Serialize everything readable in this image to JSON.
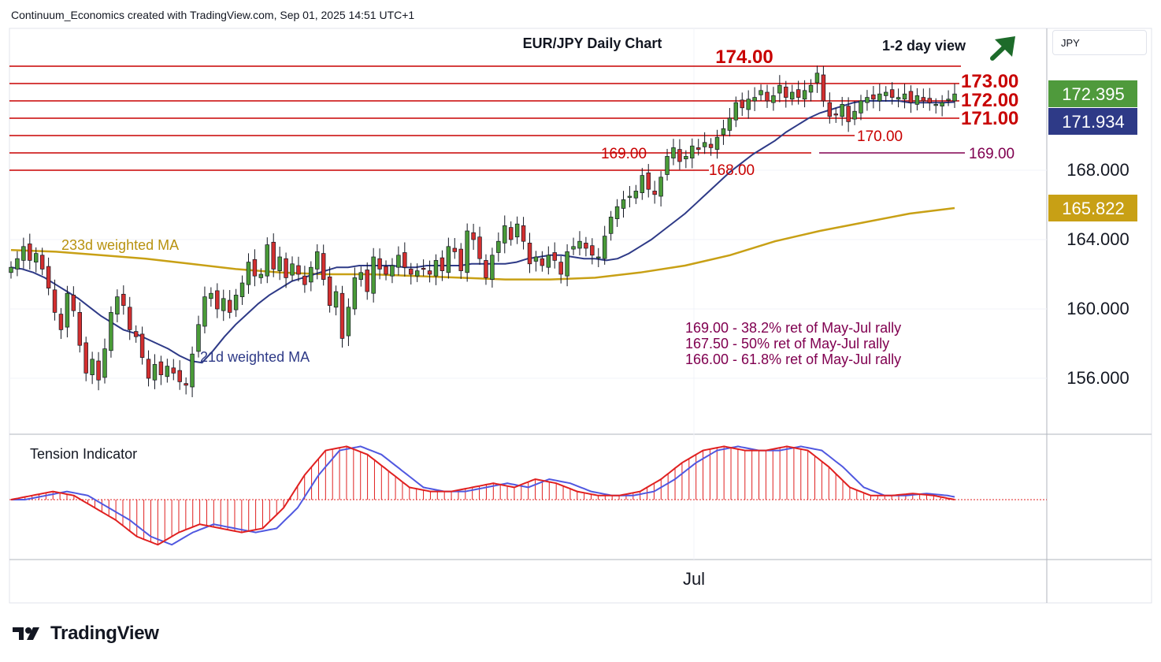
{
  "header": {
    "text": "Continuum_Economics created with TradingView.com, Sep 01, 2025 14:51 UTC+1"
  },
  "branding": {
    "logo_text": "TradingView"
  },
  "axis": {
    "currency": "JPY",
    "x_label": "Jul"
  },
  "colors": {
    "up": "#4a9b38",
    "down": "#d32f2f",
    "level": "#c80000",
    "ma21": "#2e3a87",
    "ma233": "#c8a015",
    "ret": "#800050",
    "tension_red": "#e02020",
    "tension_blue": "#5058e0",
    "price_badge": "#4f9a3c",
    "ma21_badge": "#2e3a87",
    "ma233_badge": "#c8a015",
    "arrow": "#1d6b2a"
  },
  "chart_data": {
    "type": "candlestick",
    "title": "EUR/JPY Daily Chart",
    "view": "1-2 day view",
    "view_direction": "up",
    "y_axis_ticks": [
      "168.000",
      "164.000",
      "160.000",
      "156.000"
    ],
    "price_badges": [
      {
        "label": "172.395",
        "value": 172.395,
        "kind": "last-price"
      },
      {
        "label": "171.934",
        "value": 171.934,
        "kind": "ma21"
      },
      {
        "label": "165.822",
        "value": 165.822,
        "kind": "ma233"
      }
    ],
    "levels": [
      {
        "label": "174.00",
        "value": 174.0
      },
      {
        "label": "173.00",
        "value": 173.0
      },
      {
        "label": "172.00",
        "value": 172.0
      },
      {
        "label": "171.00",
        "value": 171.0
      },
      {
        "label": "170.00",
        "value": 170.0
      },
      {
        "label": "169.00",
        "value": 169.0
      },
      {
        "label": "168.00",
        "value": 168.0
      }
    ],
    "retracement_line": {
      "label": "169.00",
      "value": 169.0
    },
    "series_labels": {
      "ma233": "233d weighted MA",
      "ma21": "21d weighted MA",
      "tension": "Tension Indicator"
    },
    "annotations": [
      "169.00 - 38.2% ret of May-Jul rally",
      "167.50 - 50% ret of May-Jul rally",
      "166.00 - 61.8% ret of May-Jul rally"
    ],
    "ohlc_close": [
      162.4,
      162.9,
      163.6,
      162.8,
      163.2,
      162.3,
      161.2,
      159.8,
      158.8,
      160.9,
      159.9,
      157.9,
      156.3,
      157.1,
      155.9,
      157.7,
      159.8,
      160.7,
      160.2,
      158.8,
      158.4,
      157.2,
      156.0,
      156.8,
      156.2,
      156.7,
      156.3,
      155.8,
      155.6,
      157.4,
      159.1,
      160.7,
      160.9,
      160.0,
      160.6,
      159.8,
      160.8,
      161.5,
      162.7,
      161.9,
      162.0,
      163.7,
      162.3,
      163.0,
      161.8,
      162.6,
      162.0,
      161.4,
      162.4,
      163.3,
      161.7,
      160.2,
      161.0,
      158.3,
      160.1,
      161.8,
      162.1,
      161.0,
      163.0,
      162.3,
      162.0,
      162.5,
      163.1,
      162.4,
      162.0,
      162.2,
      162.3,
      162.0,
      162.8,
      162.2,
      163.6,
      163.3,
      162.2,
      164.5,
      164.0,
      162.9,
      161.8,
      163.1,
      163.9,
      164.8,
      164.0,
      164.9,
      163.9,
      162.6,
      163.0,
      162.5,
      163.1,
      162.8,
      162.0,
      163.3,
      163.6,
      163.9,
      163.5,
      163.1,
      163.0,
      164.2,
      165.3,
      165.9,
      166.3,
      166.5,
      166.8,
      167.7,
      166.9,
      166.6,
      167.6,
      168.8,
      169.3,
      168.5,
      168.8,
      169.4,
      169.2,
      169.6,
      169.3,
      169.9,
      170.4,
      171.0,
      171.9,
      171.6,
      172.1,
      172.2,
      172.6,
      172.0,
      172.3,
      172.9,
      172.2,
      172.5,
      172.2,
      172.6,
      172.9,
      173.6,
      172.0,
      171.1,
      171.2,
      171.8,
      170.8,
      171.4,
      172.0,
      172.2,
      172.1,
      172.4,
      172.5,
      172.2,
      172.2,
      172.4,
      171.9,
      172.3,
      172.0,
      171.9,
      171.8,
      171.9,
      172.1,
      172.4
    ],
    "ma21": [
      162.4,
      162.3,
      162.1,
      161.8,
      161.4,
      161.0,
      160.6,
      160.1,
      159.6,
      159.2,
      158.8,
      158.6,
      158.3,
      158.0,
      157.7,
      157.3,
      157.0,
      156.9,
      157.6,
      158.4,
      159.1,
      159.7,
      160.3,
      160.8,
      161.2,
      161.6,
      161.8,
      162.0,
      162.2,
      162.4,
      162.4,
      162.5,
      162.5,
      162.5,
      162.5,
      162.4,
      162.4,
      162.5,
      162.5,
      162.5,
      162.5,
      162.6,
      162.6,
      162.6,
      162.6,
      162.7,
      162.9,
      163.0,
      163.1,
      163.1,
      163.0,
      162.9,
      162.9,
      162.8,
      162.9,
      163.2,
      163.6,
      164.0,
      164.5,
      165.0,
      165.5,
      166.1,
      166.7,
      167.3,
      167.9,
      168.4,
      168.9,
      169.3,
      169.7,
      170.2,
      170.6,
      171.0,
      171.3,
      171.5,
      171.7,
      171.9,
      172.0,
      172.0,
      172.0,
      172.0,
      171.9,
      171.9,
      171.9,
      171.9,
      171.93
    ],
    "ma233": [
      163.4,
      163.3,
      163.1,
      162.9,
      162.6,
      162.3,
      162.1,
      162.0,
      162.0,
      161.9,
      161.8,
      161.7,
      161.7,
      161.8,
      162.1,
      162.5,
      163.1,
      163.9,
      164.5,
      165.0,
      165.5,
      165.82
    ],
    "tension": [
      0,
      0.1,
      0.2,
      0.1,
      -0.2,
      -0.5,
      -0.9,
      -1.1,
      -0.8,
      -0.6,
      -0.7,
      -0.8,
      -0.7,
      -0.2,
      0.6,
      1.2,
      1.3,
      1.1,
      0.7,
      0.3,
      0.2,
      0.2,
      0.3,
      0.4,
      0.3,
      0.5,
      0.4,
      0.2,
      0.1,
      0.1,
      0.2,
      0.5,
      0.9,
      1.2,
      1.3,
      1.2,
      1.2,
      1.3,
      1.2,
      0.8,
      0.3,
      0.1,
      0.1,
      0.15,
      0.1,
      0
    ]
  }
}
